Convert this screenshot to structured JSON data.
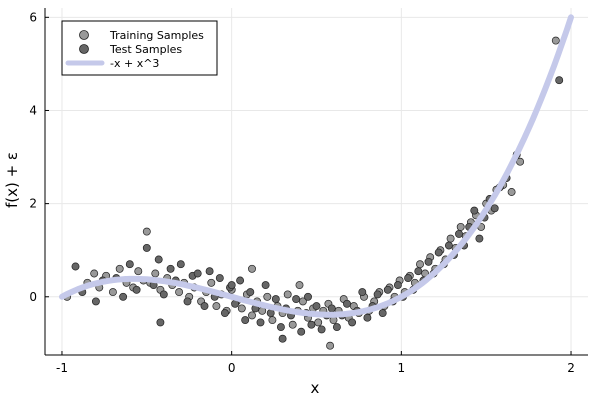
{
  "chart_data": {
    "type": "scatter",
    "title": "",
    "xlabel": "x",
    "ylabel": "f(x) + ε",
    "xlim": [
      -1.1,
      2.1
    ],
    "ylim": [
      -1.25,
      6.2
    ],
    "xticks": [
      -1,
      0,
      1,
      2
    ],
    "yticks": [
      0,
      2,
      4,
      6
    ],
    "grid": true,
    "legend_position": "top-left",
    "series": [
      {
        "name": "Training Samples",
        "kind": "scatter",
        "color": "#999999",
        "x": [
          -0.97,
          -0.85,
          -0.81,
          -0.78,
          -0.74,
          -0.7,
          -0.66,
          -0.62,
          -0.58,
          -0.55,
          -0.52,
          -0.48,
          -0.45,
          -0.42,
          -0.38,
          -0.35,
          -0.31,
          -0.28,
          -0.25,
          -0.22,
          -0.18,
          -0.15,
          -0.12,
          -0.09,
          -0.06,
          -0.03,
          0.0,
          0.03,
          0.06,
          0.09,
          0.12,
          0.15,
          0.18,
          0.21,
          0.24,
          0.27,
          0.3,
          0.33,
          0.36,
          0.39,
          0.42,
          0.45,
          0.48,
          0.51,
          0.54,
          0.57,
          0.6,
          0.63,
          0.66,
          0.69,
          0.72,
          0.75,
          0.78,
          0.81,
          0.84,
          0.87,
          0.9,
          0.93,
          0.96,
          0.99,
          1.02,
          1.05,
          1.08,
          1.11,
          1.14,
          1.17,
          1.2,
          1.23,
          1.26,
          1.29,
          1.32,
          1.35,
          1.38,
          1.41,
          1.44,
          1.47,
          1.5,
          1.53,
          1.56,
          1.6,
          1.65,
          1.7,
          1.91,
          -0.5,
          0.12,
          0.4,
          0.58
        ],
        "y": [
          0.0,
          0.3,
          0.5,
          0.2,
          0.45,
          0.1,
          0.6,
          0.3,
          0.2,
          0.55,
          0.35,
          0.3,
          0.5,
          0.15,
          0.4,
          0.25,
          0.1,
          0.3,
          0.0,
          0.2,
          -0.1,
          0.1,
          0.3,
          -0.2,
          0.05,
          -0.3,
          0.15,
          -0.1,
          -0.25,
          0.05,
          -0.4,
          -0.1,
          -0.3,
          0.0,
          -0.5,
          -0.2,
          -0.35,
          0.05,
          -0.6,
          -0.3,
          -0.1,
          -0.45,
          -0.25,
          -0.55,
          -0.3,
          -0.15,
          -0.5,
          -0.3,
          -0.05,
          -0.45,
          -0.2,
          -0.35,
          0.0,
          -0.3,
          -0.1,
          0.1,
          -0.2,
          0.2,
          0.0,
          0.35,
          0.1,
          0.45,
          0.3,
          0.7,
          0.5,
          0.85,
          0.6,
          1.0,
          0.8,
          1.25,
          1.05,
          1.5,
          1.3,
          1.6,
          1.75,
          1.5,
          2.0,
          1.85,
          2.3,
          2.4,
          2.25,
          2.9,
          5.5,
          1.4,
          0.6,
          0.25,
          -1.05
        ]
      },
      {
        "name": "Test Samples",
        "kind": "scatter",
        "color": "#666666",
        "x": [
          -0.92,
          -0.88,
          -0.8,
          -0.76,
          -0.68,
          -0.64,
          -0.6,
          -0.56,
          -0.5,
          -0.46,
          -0.43,
          -0.4,
          -0.36,
          -0.33,
          -0.3,
          -0.26,
          -0.23,
          -0.2,
          -0.16,
          -0.13,
          -0.1,
          -0.07,
          -0.04,
          -0.01,
          0.02,
          0.05,
          0.08,
          0.11,
          0.14,
          0.17,
          0.2,
          0.23,
          0.26,
          0.29,
          0.32,
          0.35,
          0.38,
          0.41,
          0.44,
          0.47,
          0.5,
          0.53,
          0.56,
          0.59,
          0.62,
          0.65,
          0.68,
          0.71,
          0.74,
          0.77,
          0.8,
          0.83,
          0.86,
          0.89,
          0.92,
          0.95,
          0.98,
          1.01,
          1.04,
          1.07,
          1.1,
          1.13,
          1.16,
          1.19,
          1.22,
          1.25,
          1.28,
          1.31,
          1.34,
          1.37,
          1.4,
          1.43,
          1.46,
          1.49,
          1.52,
          1.55,
          1.58,
          1.62,
          1.68,
          1.93,
          -0.42,
          0.0,
          0.3,
          0.45
        ],
        "y": [
          0.65,
          0.1,
          -0.1,
          0.35,
          0.4,
          0.0,
          0.7,
          0.15,
          1.05,
          0.25,
          0.8,
          0.05,
          0.6,
          0.35,
          0.7,
          -0.1,
          0.45,
          0.5,
          -0.2,
          0.55,
          0.0,
          0.4,
          -0.35,
          0.2,
          -0.15,
          0.35,
          -0.5,
          0.1,
          -0.25,
          -0.55,
          0.25,
          -0.35,
          -0.05,
          -0.65,
          -0.25,
          -0.4,
          -0.05,
          -0.75,
          -0.35,
          -0.6,
          -0.2,
          -0.7,
          -0.4,
          -0.25,
          -0.65,
          -0.4,
          -0.15,
          -0.55,
          -0.3,
          0.1,
          -0.45,
          -0.2,
          0.05,
          -0.35,
          0.15,
          -0.1,
          0.25,
          0.0,
          0.4,
          0.15,
          0.55,
          0.35,
          0.75,
          0.5,
          0.95,
          0.7,
          1.1,
          0.9,
          1.35,
          1.1,
          1.5,
          1.85,
          1.25,
          1.7,
          2.1,
          1.9,
          2.35,
          2.55,
          3.05,
          4.65,
          -0.55,
          0.25,
          -0.9,
          0.0
        ]
      },
      {
        "name": "-x + x^3",
        "kind": "line",
        "color": "#c5c9ea",
        "function": "-x + x^3",
        "x_range": [
          -1,
          2
        ]
      }
    ]
  }
}
